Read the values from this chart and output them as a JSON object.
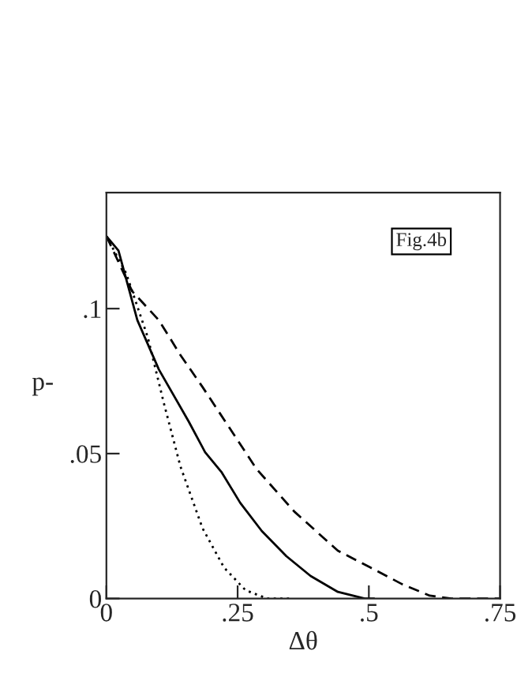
{
  "chart_data": {
    "type": "line",
    "xlabel": "Δθ",
    "ylabel": "p-",
    "annotations": [
      "Fig.4b"
    ],
    "xlim": [
      0,
      0.75
    ],
    "ylim": [
      0,
      0.14
    ],
    "xticks": [
      {
        "value": 0,
        "label": "0"
      },
      {
        "value": 0.25,
        "label": ".25"
      },
      {
        "value": 0.5,
        "label": ".5"
      },
      {
        "value": 0.75,
        "label": ".75"
      }
    ],
    "yticks": [
      {
        "value": 0,
        "label": "0"
      },
      {
        "value": 0.05,
        "label": ".05"
      },
      {
        "value": 0.1,
        "label": ".1"
      }
    ],
    "grid": false,
    "legend": false,
    "series": [
      {
        "color": "#000000",
        "line_style": "solid",
        "x": [
          0,
          0.023,
          0.059,
          0.1,
          0.157,
          0.188,
          0.219,
          0.255,
          0.296,
          0.343,
          0.389,
          0.441,
          0.492,
          0.51
        ],
        "values": [
          0.125,
          0.12,
          0.096,
          0.079,
          0.061,
          0.0505,
          0.0437,
          0.033,
          0.0233,
          0.0146,
          0.0078,
          0.0023,
          0,
          0
        ]
      },
      {
        "color": "#000000",
        "line_style": "dashed",
        "x": [
          0,
          0.049,
          0.1,
          0.141,
          0.183,
          0.234,
          0.286,
          0.358,
          0.441,
          0.503,
          0.564,
          0.616,
          0.657,
          0.75
        ],
        "values": [
          0.125,
          0.106,
          0.096,
          0.084,
          0.073,
          0.059,
          0.0447,
          0.03,
          0.0165,
          0.0107,
          0.0049,
          0.001,
          0,
          0
        ]
      },
      {
        "color": "#000000",
        "line_style": "dotted",
        "x": [
          0,
          0.038,
          0.079,
          0.11,
          0.141,
          0.183,
          0.224,
          0.265,
          0.306,
          0.348
        ],
        "values": [
          0.125,
          0.112,
          0.09,
          0.067,
          0.0456,
          0.0243,
          0.0107,
          0.0029,
          0,
          0
        ]
      }
    ]
  }
}
